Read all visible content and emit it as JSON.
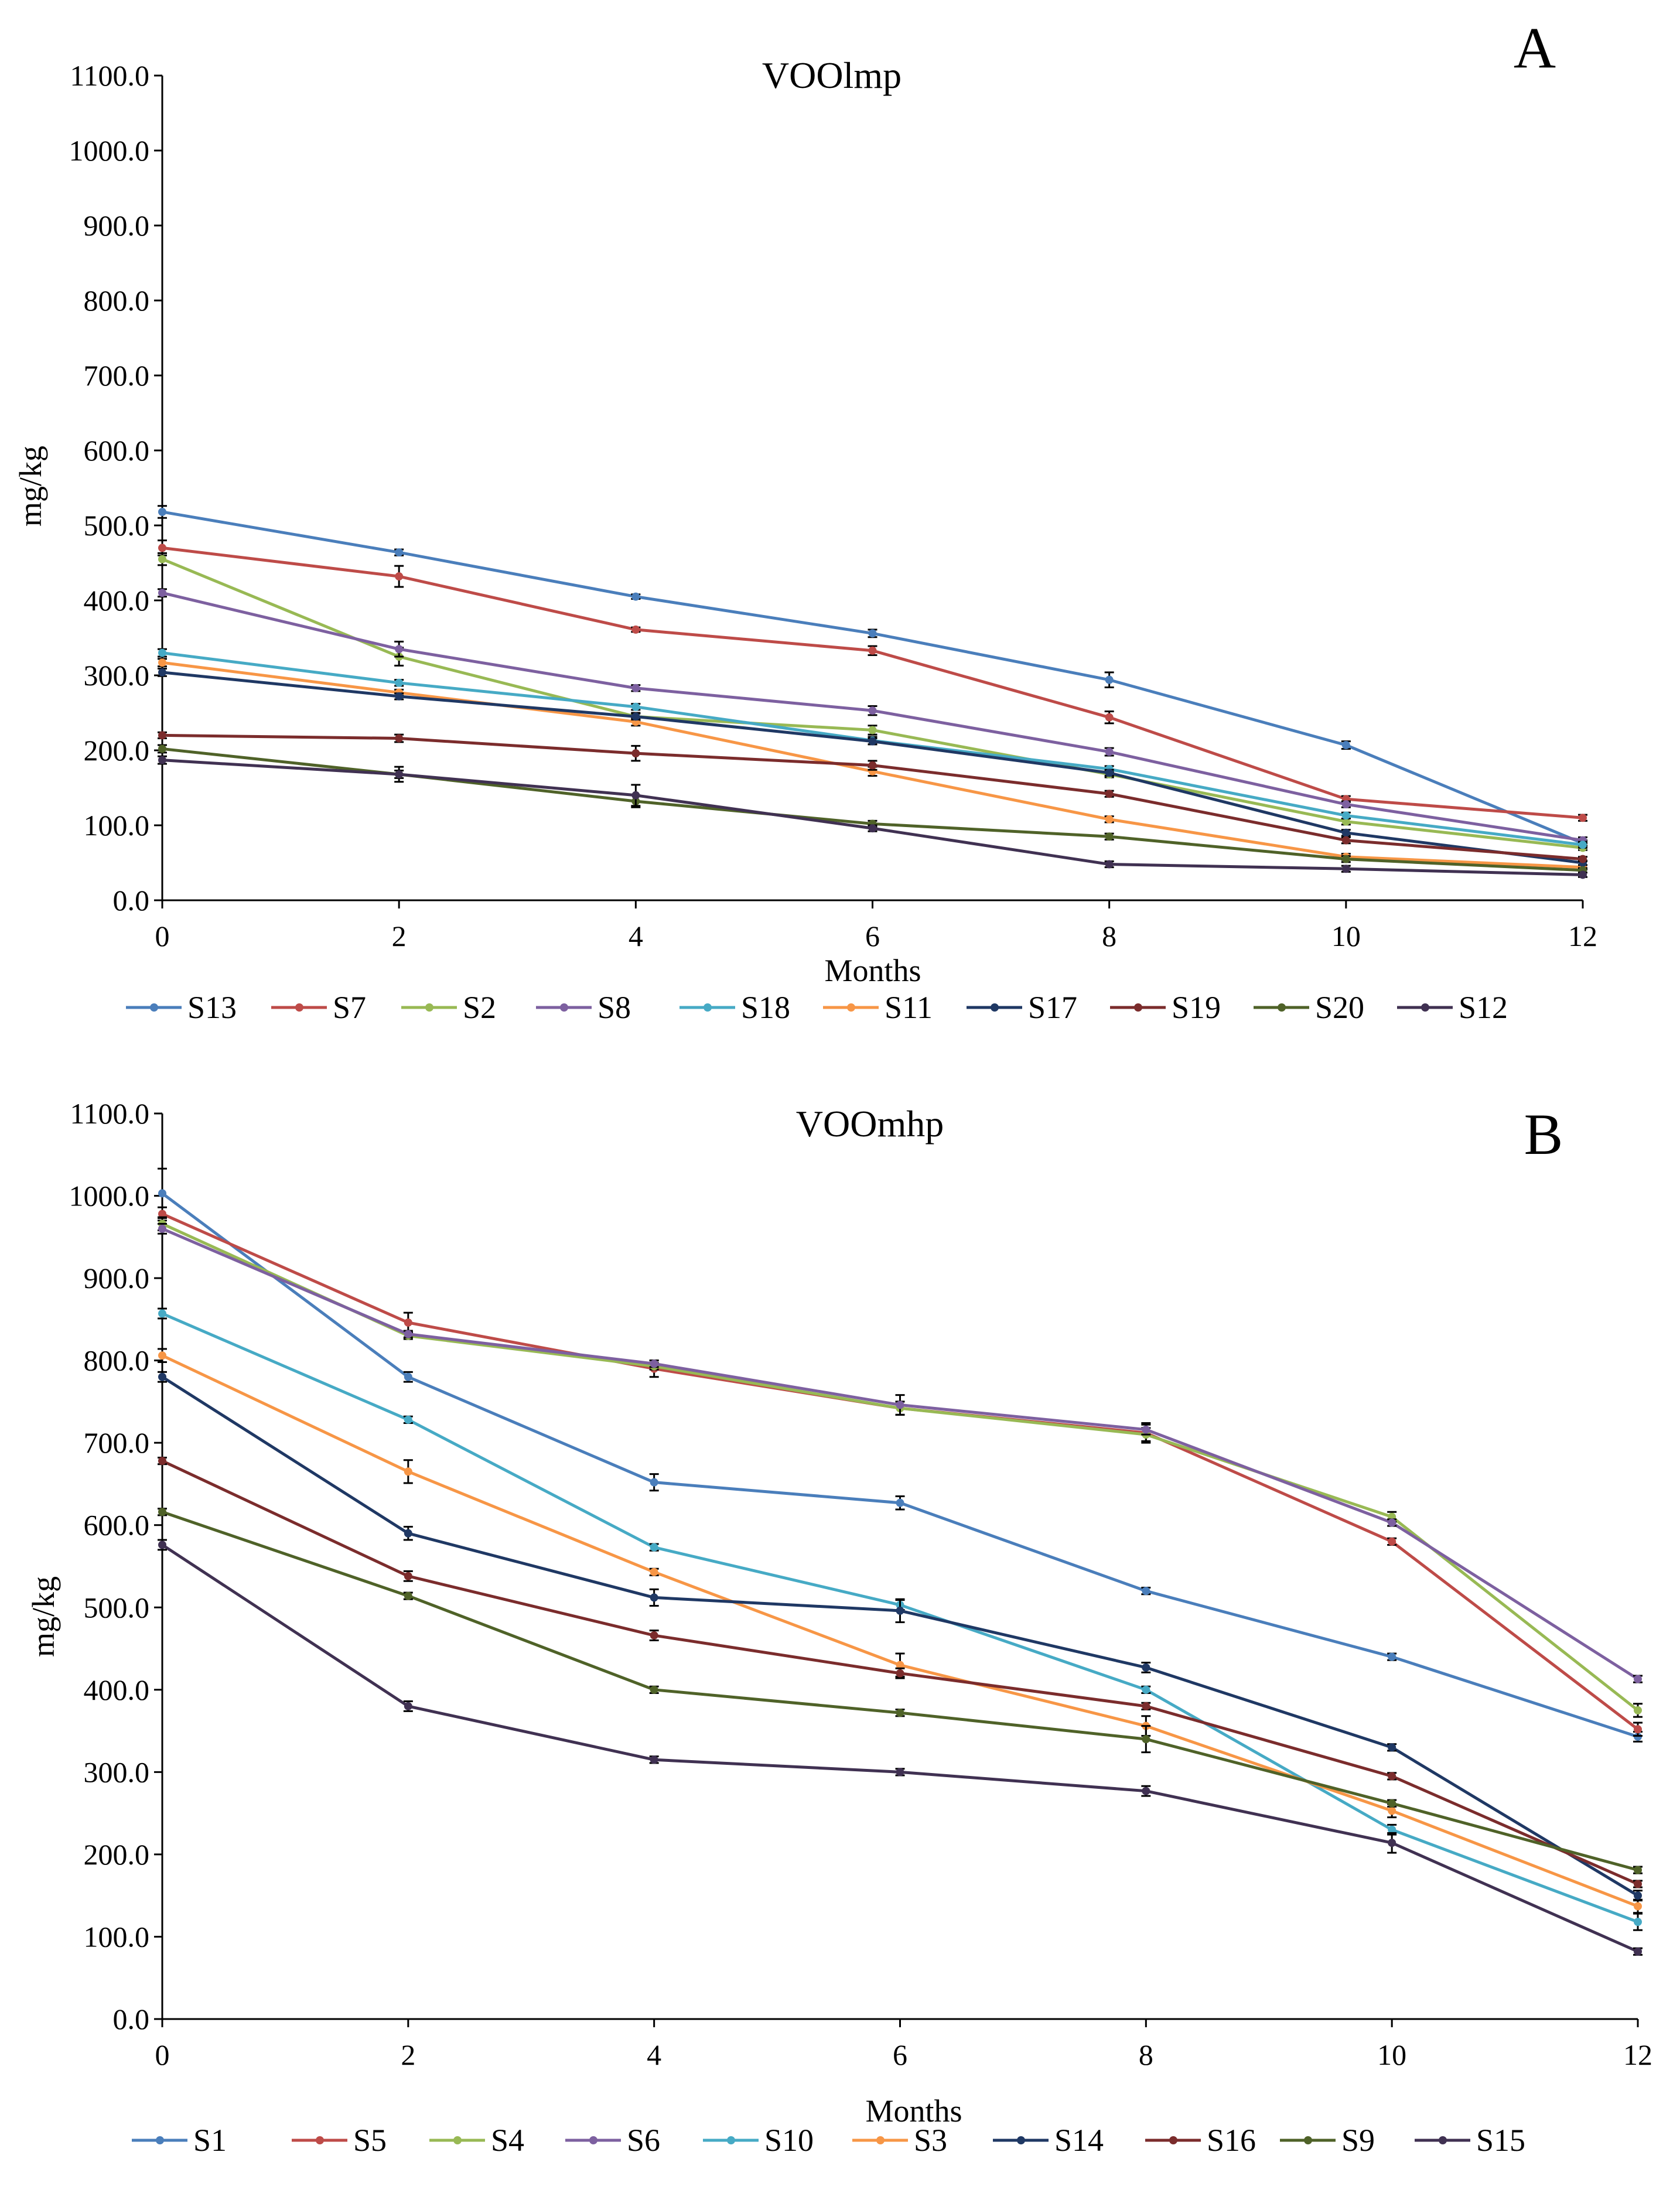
{
  "chart_data": [
    {
      "type": "line",
      "panel_label": "A",
      "title": "VOOlmp",
      "xlabel": "Months",
      "ylabel": "mg/kg",
      "x": [
        0,
        2,
        4,
        6,
        8,
        10,
        12
      ],
      "xticks": [
        "0",
        "2",
        "4",
        "6",
        "8",
        "10",
        "12"
      ],
      "yticks": [
        "0.0",
        "100.0",
        "200.0",
        "300.0",
        "400.0",
        "500.0",
        "600.0",
        "700.0",
        "800.0",
        "900.0",
        "1000.0",
        "1100.0"
      ],
      "ylim": [
        0,
        1100
      ],
      "grid": false,
      "legend_position": "bottom",
      "series": [
        {
          "name": "S13",
          "color": "#4a7ebb",
          "values": [
            518,
            464,
            405,
            356,
            294,
            207,
            76
          ],
          "errors": [
            8,
            4,
            3,
            5,
            10,
            5,
            4
          ]
        },
        {
          "name": "S7",
          "color": "#be4b48",
          "values": [
            470,
            432,
            361,
            333,
            244,
            135,
            110
          ],
          "errors": [
            10,
            14,
            3,
            6,
            8,
            4,
            4
          ]
        },
        {
          "name": "S2",
          "color": "#98b954",
          "values": [
            455,
            325,
            245,
            227,
            168,
            105,
            70
          ],
          "errors": [
            8,
            12,
            5,
            6,
            4,
            4,
            3
          ]
        },
        {
          "name": "S8",
          "color": "#7d60a0",
          "values": [
            410,
            335,
            283,
            253,
            198,
            128,
            80
          ],
          "errors": [
            5,
            10,
            4,
            6,
            5,
            4,
            4
          ]
        },
        {
          "name": "S18",
          "color": "#46aac5",
          "values": [
            330,
            290,
            258,
            213,
            175,
            113,
            74
          ],
          "errors": [
            5,
            4,
            4,
            5,
            4,
            4,
            4
          ]
        },
        {
          "name": "S11",
          "color": "#f79646",
          "values": [
            317,
            277,
            238,
            172,
            108,
            58,
            44
          ],
          "errors": [
            5,
            4,
            5,
            6,
            4,
            4,
            3
          ]
        },
        {
          "name": "S17",
          "color": "#1f3864",
          "values": [
            304,
            272,
            245,
            212,
            170,
            90,
            50
          ],
          "errors": [
            5,
            4,
            4,
            4,
            4,
            4,
            3
          ]
        },
        {
          "name": "S19",
          "color": "#7b2c2c",
          "values": [
            220,
            216,
            196,
            180,
            142,
            80,
            55
          ],
          "errors": [
            4,
            5,
            10,
            6,
            4,
            4,
            3
          ]
        },
        {
          "name": "S20",
          "color": "#4f6228",
          "values": [
            202,
            168,
            132,
            102,
            85,
            55,
            40
          ],
          "errors": [
            5,
            5,
            8,
            4,
            4,
            4,
            3
          ]
        },
        {
          "name": "S12",
          "color": "#403152",
          "values": [
            187,
            168,
            140,
            96,
            48,
            42,
            34
          ],
          "errors": [
            5,
            10,
            14,
            4,
            4,
            4,
            3
          ]
        }
      ]
    },
    {
      "type": "line",
      "panel_label": "B",
      "title": "VOOmhp",
      "xlabel": "Months",
      "ylabel": "mg/kg",
      "x": [
        0,
        2,
        4,
        6,
        8,
        10,
        12
      ],
      "xticks": [
        "0",
        "2",
        "4",
        "6",
        "8",
        "10",
        "12"
      ],
      "yticks": [
        "0.0",
        "100.0",
        "200.0",
        "300.0",
        "400.0",
        "500.0",
        "600.0",
        "700.0",
        "800.0",
        "900.0",
        "1000.0",
        "1100.0"
      ],
      "ylim": [
        0,
        1100
      ],
      "grid": false,
      "legend_position": "bottom",
      "series": [
        {
          "name": "S1",
          "color": "#4a7ebb",
          "values": [
            1003,
            780,
            652,
            627,
            520,
            440,
            343
          ],
          "errors": [
            30,
            6,
            10,
            8,
            4,
            4,
            6
          ]
        },
        {
          "name": "S5",
          "color": "#be4b48",
          "values": [
            978,
            846,
            790,
            742,
            712,
            580,
            352
          ],
          "errors": [
            8,
            12,
            10,
            8,
            12,
            4,
            8
          ]
        },
        {
          "name": "S4",
          "color": "#98b954",
          "values": [
            966,
            830,
            793,
            742,
            710,
            610,
            375
          ],
          "errors": [
            8,
            4,
            4,
            8,
            8,
            6,
            8
          ]
        },
        {
          "name": "S6",
          "color": "#7d60a0",
          "values": [
            960,
            832,
            796,
            746,
            716,
            603,
            413
          ],
          "errors": [
            6,
            4,
            4,
            12,
            6,
            4,
            4
          ]
        },
        {
          "name": "S10",
          "color": "#46aac5",
          "values": [
            857,
            728,
            573,
            503,
            400,
            230,
            118
          ],
          "errors": [
            6,
            4,
            4,
            6,
            4,
            6,
            10
          ]
        },
        {
          "name": "S3",
          "color": "#f79646",
          "values": [
            806,
            665,
            543,
            430,
            356,
            253,
            137
          ],
          "errors": [
            8,
            14,
            4,
            14,
            12,
            8,
            8
          ]
        },
        {
          "name": "S14",
          "color": "#1f3864",
          "values": [
            780,
            590,
            512,
            496,
            427,
            330,
            150
          ],
          "errors": [
            6,
            8,
            10,
            14,
            6,
            4,
            6
          ]
        },
        {
          "name": "S16",
          "color": "#7b2c2c",
          "values": [
            678,
            538,
            466,
            420,
            380,
            295,
            164
          ],
          "errors": [
            4,
            6,
            6,
            6,
            4,
            4,
            4
          ]
        },
        {
          "name": "S9",
          "color": "#4f6228",
          "values": [
            616,
            514,
            400,
            372,
            340,
            262,
            181
          ],
          "errors": [
            4,
            4,
            4,
            4,
            16,
            4,
            4
          ]
        },
        {
          "name": "S15",
          "color": "#403152",
          "values": [
            576,
            380,
            315,
            300,
            277,
            214,
            82
          ],
          "errors": [
            6,
            6,
            4,
            4,
            6,
            12,
            4
          ]
        }
      ]
    }
  ]
}
